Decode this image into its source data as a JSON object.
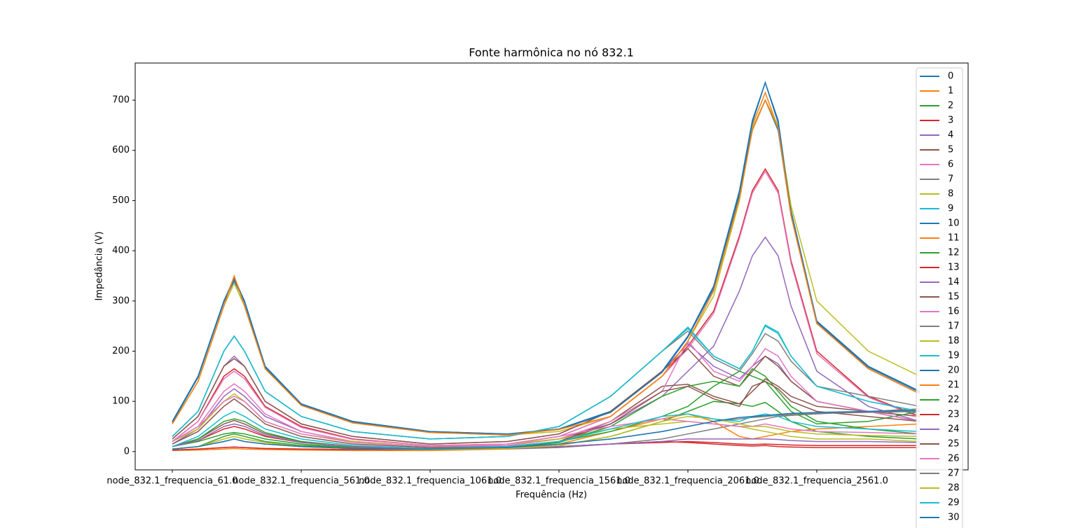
{
  "chart_data": {
    "type": "line",
    "title": "Fonte harmônica no nó 832.1",
    "x_label": "Frequência (Hz)",
    "y_label": "Impedância (V)",
    "x": [
      61,
      161,
      261,
      301,
      341,
      421,
      561,
      761,
      1061,
      1361,
      1561,
      1761,
      1961,
      2061,
      2161,
      2261,
      2311,
      2361,
      2411,
      2461,
      2561,
      2761,
      2961
    ],
    "xlim": [
      -83,
      3148
    ],
    "xticks": [
      {
        "value": 61,
        "label": "node_832.1_frequencia_61.0"
      },
      {
        "value": 561,
        "label": "node_832.1_frequencia_561.0"
      },
      {
        "value": 1061,
        "label": "node_832.1_frequencia_1061.0"
      },
      {
        "value": 1561,
        "label": "node_832.1_frequencia_1561.0"
      },
      {
        "value": 2061,
        "label": "node_832.1_frequencia_2061.0"
      },
      {
        "value": 2561,
        "label": "node_832.1_frequencia_2561.0"
      }
    ],
    "ylim": [
      -36.5,
      774
    ],
    "yticks": [
      0,
      100,
      200,
      300,
      400,
      500,
      600,
      700
    ],
    "legend": "upper right",
    "series": [
      {
        "name": "0",
        "color": "#1f77b4",
        "values": [
          60,
          150,
          300,
          345,
          300,
          170,
          95,
          60,
          40,
          35,
          45,
          80,
          160,
          230,
          330,
          520,
          660,
          735,
          660,
          480,
          260,
          170,
          120
        ]
      },
      {
        "name": "1",
        "color": "#ff7f0e",
        "values": [
          58,
          148,
          298,
          348,
          298,
          168,
          93,
          58,
          39,
          34,
          44,
          78,
          158,
          228,
          325,
          510,
          650,
          715,
          645,
          470,
          255,
          168,
          118
        ]
      },
      {
        "name": "2",
        "color": "#2ca02c",
        "values": [
          10,
          20,
          35,
          38,
          35,
          25,
          15,
          8,
          5,
          6,
          12,
          30,
          60,
          80,
          100,
          95,
          90,
          98,
          80,
          60,
          40,
          30,
          25
        ]
      },
      {
        "name": "3",
        "color": "#d62728",
        "values": [
          20,
          60,
          150,
          165,
          150,
          90,
          50,
          25,
          12,
          15,
          30,
          70,
          150,
          210,
          280,
          430,
          520,
          563,
          520,
          380,
          200,
          110,
          70
        ]
      },
      {
        "name": "4",
        "color": "#9467bd",
        "values": [
          15,
          45,
          110,
          125,
          110,
          70,
          40,
          20,
          10,
          12,
          25,
          55,
          110,
          160,
          210,
          320,
          390,
          427,
          390,
          290,
          160,
          90,
          60
        ]
      },
      {
        "name": "5",
        "color": "#8c564b",
        "values": [
          10,
          25,
          55,
          62,
          55,
          35,
          20,
          10,
          5,
          8,
          20,
          60,
          130,
          134,
          110,
          95,
          120,
          145,
          130,
          110,
          90,
          80,
          70
        ]
      },
      {
        "name": "6",
        "color": "#e377c2",
        "values": [
          20,
          60,
          145,
          160,
          145,
          88,
          48,
          24,
          12,
          15,
          30,
          70,
          150,
          205,
          275,
          425,
          515,
          558,
          515,
          375,
          195,
          108,
          68
        ]
      },
      {
        "name": "7",
        "color": "#7f7f7f",
        "values": [
          3,
          5,
          8,
          9,
          8,
          6,
          5,
          4,
          4,
          5,
          8,
          15,
          25,
          35,
          45,
          55,
          60,
          65,
          70,
          72,
          75,
          80,
          85
        ]
      },
      {
        "name": "8",
        "color": "#bcbd22",
        "values": [
          55,
          140,
          290,
          335,
          290,
          165,
          92,
          57,
          38,
          33,
          40,
          70,
          150,
          220,
          310,
          500,
          645,
          700,
          650,
          490,
          300,
          200,
          150
        ]
      },
      {
        "name": "9",
        "color": "#17becf",
        "values": [
          30,
          80,
          200,
          230,
          200,
          120,
          70,
          40,
          25,
          30,
          50,
          110,
          200,
          245,
          190,
          165,
          200,
          250,
          235,
          190,
          130,
          100,
          80
        ]
      },
      {
        "name": "10",
        "color": "#1f77b4",
        "values": [
          60,
          150,
          300,
          345,
          300,
          170,
          95,
          60,
          40,
          35,
          45,
          80,
          160,
          230,
          325,
          510,
          640,
          700,
          640,
          470,
          255,
          165,
          115
        ]
      },
      {
        "name": "11",
        "color": "#ff7f0e",
        "values": [
          2,
          3,
          5,
          6,
          5,
          4,
          3,
          2,
          2,
          5,
          15,
          40,
          65,
          75,
          60,
          30,
          25,
          30,
          35,
          40,
          45,
          50,
          55
        ]
      },
      {
        "name": "12",
        "color": "#2ca02c",
        "values": [
          5,
          10,
          30,
          35,
          30,
          20,
          12,
          8,
          5,
          10,
          20,
          40,
          70,
          90,
          130,
          160,
          150,
          140,
          110,
          80,
          55,
          60,
          80
        ]
      },
      {
        "name": "13",
        "color": "#d62728",
        "values": [
          3,
          5,
          8,
          9,
          8,
          6,
          5,
          4,
          4,
          6,
          10,
          15,
          20,
          18,
          15,
          12,
          11,
          12,
          10,
          9,
          8,
          8,
          8
        ]
      },
      {
        "name": "14",
        "color": "#9467bd",
        "values": [
          25,
          70,
          170,
          190,
          170,
          100,
          55,
          30,
          15,
          20,
          35,
          80,
          160,
          215,
          170,
          145,
          170,
          190,
          175,
          140,
          100,
          80,
          60
        ]
      },
      {
        "name": "15",
        "color": "#8c564b",
        "values": [
          25,
          70,
          170,
          185,
          170,
          100,
          55,
          30,
          15,
          20,
          35,
          80,
          160,
          205,
          150,
          130,
          160,
          190,
          170,
          140,
          100,
          80,
          60
        ]
      },
      {
        "name": "16",
        "color": "#e377c2",
        "values": [
          20,
          50,
          120,
          135,
          120,
          75,
          40,
          20,
          10,
          12,
          25,
          60,
          120,
          220,
          160,
          140,
          170,
          205,
          190,
          150,
          100,
          80,
          60
        ]
      },
      {
        "name": "17",
        "color": "#7f7f7f",
        "values": [
          30,
          80,
          200,
          230,
          200,
          120,
          70,
          40,
          25,
          30,
          50,
          110,
          200,
          240,
          185,
          160,
          195,
          235,
          220,
          180,
          130,
          110,
          90
        ]
      },
      {
        "name": "18",
        "color": "#bcbd22",
        "values": [
          20,
          45,
          100,
          115,
          100,
          60,
          35,
          20,
          10,
          15,
          25,
          45,
          55,
          60,
          55,
          50,
          45,
          40,
          35,
          30,
          25,
          25,
          20
        ]
      },
      {
        "name": "19",
        "color": "#17becf",
        "values": [
          30,
          80,
          200,
          230,
          200,
          120,
          70,
          40,
          25,
          30,
          50,
          110,
          200,
          248,
          190,
          165,
          200,
          252,
          238,
          190,
          130,
          100,
          80
        ]
      },
      {
        "name": "20",
        "color": "#1f77b4",
        "values": [
          58,
          148,
          298,
          340,
          298,
          168,
          93,
          58,
          39,
          34,
          44,
          78,
          158,
          228,
          325,
          515,
          655,
          735,
          655,
          475,
          258,
          168,
          118
        ]
      },
      {
        "name": "21",
        "color": "#ff7f0e",
        "values": [
          55,
          140,
          290,
          350,
          290,
          165,
          92,
          57,
          38,
          33,
          44,
          70,
          150,
          220,
          320,
          505,
          640,
          700,
          645,
          470,
          255,
          165,
          115
        ]
      },
      {
        "name": "22",
        "color": "#2ca02c",
        "values": [
          10,
          25,
          60,
          65,
          60,
          38,
          20,
          10,
          5,
          8,
          18,
          50,
          110,
          130,
          140,
          130,
          165,
          150,
          120,
          90,
          60,
          45,
          35
        ]
      },
      {
        "name": "23",
        "color": "#d62728",
        "values": [
          10,
          22,
          45,
          50,
          45,
          30,
          18,
          10,
          5,
          6,
          10,
          15,
          18,
          20,
          18,
          15,
          14,
          15,
          14,
          13,
          12,
          12,
          12
        ]
      },
      {
        "name": "24",
        "color": "#9467bd",
        "values": [
          10,
          22,
          50,
          55,
          50,
          32,
          18,
          10,
          5,
          6,
          10,
          15,
          20,
          25,
          25,
          25,
          25,
          25,
          24,
          22,
          20,
          20,
          18
        ]
      },
      {
        "name": "25",
        "color": "#8c564b",
        "values": [
          15,
          40,
          90,
          105,
          90,
          55,
          30,
          15,
          8,
          10,
          20,
          55,
          120,
          130,
          105,
          90,
          130,
          140,
          125,
          100,
          80,
          70,
          60
        ]
      },
      {
        "name": "26",
        "color": "#e377c2",
        "values": [
          20,
          50,
          100,
          110,
          100,
          60,
          35,
          18,
          10,
          15,
          30,
          50,
          65,
          60,
          55,
          50,
          50,
          55,
          50,
          45,
          40,
          38,
          35
        ]
      },
      {
        "name": "27",
        "color": "#7f7f7f",
        "values": [
          5,
          10,
          20,
          25,
          20,
          15,
          10,
          6,
          5,
          8,
          15,
          25,
          40,
          50,
          60,
          65,
          68,
          70,
          72,
          74,
          76,
          78,
          80
        ]
      },
      {
        "name": "28",
        "color": "#bcbd22",
        "values": [
          5,
          10,
          25,
          30,
          25,
          18,
          10,
          6,
          4,
          6,
          12,
          30,
          60,
          70,
          65,
          55,
          50,
          50,
          45,
          40,
          35,
          32,
          30
        ]
      },
      {
        "name": "29",
        "color": "#17becf",
        "values": [
          10,
          30,
          70,
          80,
          70,
          45,
          25,
          12,
          6,
          10,
          20,
          45,
          70,
          75,
          65,
          60,
          70,
          75,
          70,
          60,
          50,
          45,
          40
        ]
      },
      {
        "name": "30",
        "color": "#1f77b4",
        "values": [
          5,
          10,
          20,
          25,
          20,
          15,
          10,
          6,
          5,
          8,
          15,
          25,
          40,
          50,
          60,
          68,
          70,
          72,
          74,
          76,
          78,
          80,
          82
        ]
      }
    ]
  }
}
